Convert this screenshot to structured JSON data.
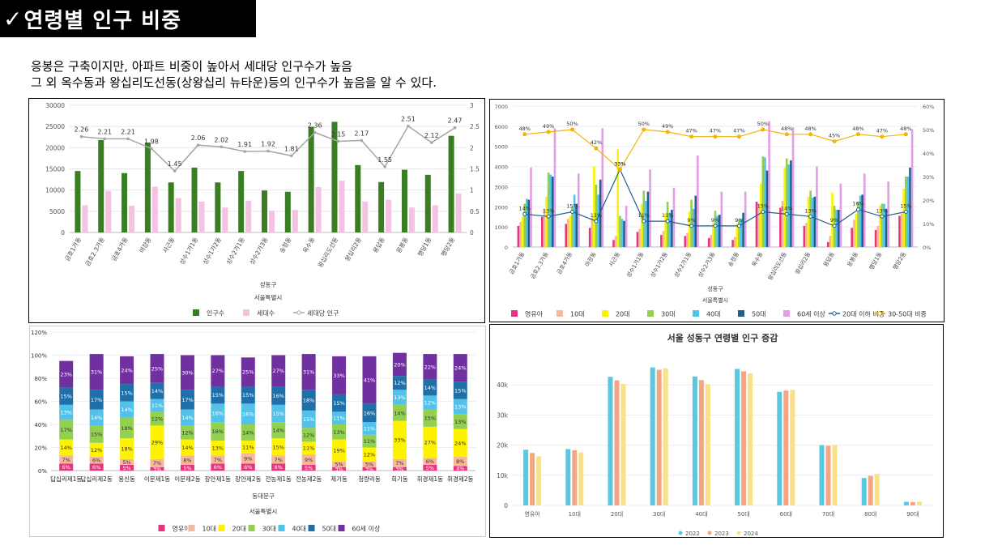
{
  "header": {
    "check_icon": "✓",
    "title": "연령별 인구 비중"
  },
  "description": {
    "line1": "응봉은 구축이지만, 아파트 비중이 높아서 세대당 인구수가 높음",
    "line2": "그 외 옥수동과 왕십리도선동(상왕십리 뉴타운)등의 인구수가 높음을 알 수 있다."
  },
  "chart_data": [
    {
      "id": "population",
      "type": "bar",
      "categories": [
        "금호1가동",
        "금호2.3가동",
        "금호4가동",
        "마장동",
        "사근동",
        "성수1가1동",
        "성수1가2동",
        "성수2가1동",
        "성수2가3동",
        "송정동",
        "옥수동",
        "왕십리도선동",
        "왕십리2동",
        "용답동",
        "응봉동",
        "행당1동",
        "행당2동"
      ],
      "series": [
        {
          "name": "인구수",
          "color": "#3a7d23",
          "axis": "left",
          "values": [
            14500,
            21800,
            14000,
            21200,
            11800,
            15300,
            11800,
            14500,
            9900,
            9600,
            24900,
            26100,
            15900,
            11900,
            14800,
            13600,
            22800
          ]
        },
        {
          "name": "세대수",
          "color": "#f4c2e3",
          "axis": "left",
          "values": [
            6400,
            9800,
            6300,
            10800,
            8100,
            7300,
            5900,
            7500,
            5100,
            5300,
            10700,
            12200,
            7300,
            7700,
            5900,
            6400,
            9200
          ]
        },
        {
          "name": "세대당 인구",
          "type": "line",
          "color": "#a6a6a6",
          "axis": "right",
          "values": [
            2.26,
            2.21,
            2.21,
            1.98,
            1.45,
            2.06,
            2.02,
            1.91,
            1.92,
            1.81,
            2.36,
            2.15,
            2.17,
            1.55,
            2.51,
            2.12,
            2.47
          ]
        }
      ],
      "y_left_ticks": [
        "0",
        "5000",
        "10000",
        "15000",
        "20000",
        "25000",
        "30000"
      ],
      "y_right_ticks": [
        "0",
        "0.5",
        "1",
        "1.5",
        "2",
        "2.5",
        "3"
      ],
      "ylim": [
        0,
        30000
      ],
      "y2lim": [
        0,
        3
      ],
      "xlabel": "성동구",
      "xlabel2": "서울특별시",
      "legend": [
        "인구수",
        "세대수",
        "세대당 인구"
      ]
    },
    {
      "id": "age-groups",
      "type": "bar",
      "categories": [
        "금호1가동",
        "금호2.3가동",
        "금호4가동",
        "마장동",
        "사근동",
        "성수1가1동",
        "성수1가2동",
        "성수2가1동",
        "성수2가3동",
        "송정동",
        "옥수동",
        "왕십리도선동",
        "왕십리2동",
        "용답동",
        "응봉동",
        "행당1동",
        "행당2동"
      ],
      "series": [
        {
          "name": "영유아",
          "color": "#e8347f",
          "values": [
            1050,
            1500,
            1150,
            950,
            350,
            750,
            600,
            550,
            450,
            350,
            2250,
            1950,
            1050,
            250,
            950,
            850,
            1550
          ]
        },
        {
          "name": "10대",
          "color": "#f7b79a",
          "values": [
            1250,
            1900,
            1400,
            1500,
            550,
            900,
            800,
            700,
            600,
            500,
            2150,
            2300,
            1200,
            550,
            1350,
            1050,
            1650
          ]
        },
        {
          "name": "20대",
          "color": "#fff200",
          "values": [
            1500,
            2500,
            1550,
            4000,
            4850,
            2150,
            1650,
            1750,
            1200,
            1150,
            3150,
            3950,
            2500,
            2700,
            1650,
            2050,
            2900
          ]
        },
        {
          "name": "30대",
          "color": "#92d050",
          "values": [
            2150,
            3700,
            2000,
            3100,
            1550,
            2800,
            2250,
            2350,
            1800,
            1350,
            4500,
            4400,
            2800,
            2050,
            2250,
            2150,
            3500
          ]
        },
        {
          "name": "40대",
          "color": "#52c2ea",
          "values": [
            2400,
            3600,
            2600,
            2600,
            1400,
            2300,
            1700,
            1900,
            1550,
            1400,
            4450,
            4100,
            2450,
            1850,
            2550,
            2150,
            3500
          ]
        },
        {
          "name": "50대",
          "color": "#1f5f8b",
          "values": [
            2350,
            3500,
            2150,
            3350,
            1300,
            2750,
            1850,
            2550,
            1600,
            1700,
            3800,
            4300,
            2500,
            1850,
            2600,
            1900,
            3950
          ]
        },
        {
          "name": "60세 이상",
          "color": "#e29ee6",
          "values": [
            3950,
            5900,
            3650,
            5900,
            2050,
            3850,
            2950,
            4550,
            2750,
            2750,
            6250,
            5950,
            4000,
            3150,
            3650,
            3250,
            5850
          ]
        },
        {
          "name": "20대 이하 비중",
          "type": "line",
          "color": "#1f5f8b",
          "values": [
            14,
            13,
            15,
            11,
            33,
            11,
            11,
            9,
            9,
            9,
            15,
            14,
            13,
            9,
            16,
            13,
            15
          ]
        },
        {
          "name": "30-50대 비중",
          "type": "line",
          "color": "#f4b400",
          "values": [
            48,
            49,
            50,
            42,
            33,
            50,
            49,
            47,
            47,
            47,
            50,
            48,
            48,
            45,
            48,
            47,
            48
          ]
        }
      ],
      "y_left_ticks": [
        "0",
        "1000",
        "2000",
        "3000",
        "4000",
        "5000",
        "6000",
        "7000"
      ],
      "y_right_ticks": [
        "0%",
        "10%",
        "20%",
        "30%",
        "40%",
        "50%",
        "60%"
      ],
      "ylim": [
        0,
        7000
      ],
      "y2lim": [
        0,
        60
      ],
      "xlabel": "성동구",
      "xlabel2": "서울특별시",
      "legend": [
        "영유아",
        "10대",
        "20대",
        "30대",
        "40대",
        "50대",
        "60세 이상",
        "20대 이하 비중",
        "30-50대 비중"
      ]
    },
    {
      "id": "dongdaemun-share",
      "type": "bar",
      "stacked": true,
      "categories": [
        "답십리제1동",
        "답십리제2동",
        "용신동",
        "이문제1동",
        "이문제2동",
        "장안제1동",
        "장안제2동",
        "전농제1동",
        "전농제2동",
        "제기동",
        "청량리동",
        "회기동",
        "휘경제1동",
        "휘경제2동"
      ],
      "series": [
        {
          "name": "영유아",
          "color": "#e8347f",
          "values": [
            6,
            6,
            5,
            3,
            5,
            6,
            6,
            6,
            5,
            3,
            3,
            3,
            5,
            4
          ]
        },
        {
          "name": "10대",
          "color": "#f7b79a",
          "values": [
            7,
            6,
            5,
            7,
            8,
            7,
            9,
            7,
            9,
            5,
            5,
            7,
            6,
            8
          ]
        },
        {
          "name": "20대",
          "color": "#fff200",
          "values": [
            14,
            12,
            18,
            29,
            14,
            13,
            11,
            15,
            11,
            19,
            12,
            33,
            27,
            24
          ]
        },
        {
          "name": "30대",
          "color": "#92d050",
          "values": [
            17,
            15,
            18,
            12,
            12,
            16,
            14,
            14,
            12,
            13,
            11,
            14,
            15,
            13
          ]
        },
        {
          "name": "40대",
          "color": "#52c2ea",
          "values": [
            13,
            14,
            14,
            11,
            14,
            16,
            18,
            15,
            15,
            11,
            11,
            13,
            12,
            13
          ]
        },
        {
          "name": "50대",
          "color": "#1f6fa8",
          "values": [
            15,
            17,
            15,
            14,
            17,
            15,
            15,
            16,
            18,
            15,
            16,
            12,
            14,
            15
          ]
        },
        {
          "name": "60세 이상",
          "color": "#7030a0",
          "values": [
            23,
            31,
            24,
            25,
            30,
            27,
            25,
            27,
            31,
            33,
            41,
            20,
            22,
            24
          ]
        }
      ],
      "y_ticks": [
        "0%",
        "20%",
        "40%",
        "60%",
        "80%",
        "100%",
        "120%"
      ],
      "ylim": [
        0,
        120
      ],
      "xlabel": "동대문구",
      "xlabel2": "서울특별시",
      "legend": [
        "영유아",
        "10대",
        "20대",
        "30대",
        "40대",
        "50대",
        "60세 이상"
      ]
    },
    {
      "id": "age-trend",
      "type": "bar",
      "title": "서울 성동구 연령별 인구 증감",
      "categories": [
        "영유아",
        "10대",
        "20대",
        "30대",
        "40대",
        "50대",
        "60대",
        "70대",
        "80대",
        "90대"
      ],
      "series": [
        {
          "name": "2022",
          "color": "#5bc8df",
          "values": [
            18500,
            18700,
            42700,
            45800,
            42800,
            45300,
            37700,
            20000,
            9100,
            1200
          ]
        },
        {
          "name": "2023",
          "color": "#f4a582",
          "values": [
            17400,
            18300,
            41500,
            45000,
            41600,
            44500,
            38100,
            19800,
            9800,
            1100
          ]
        },
        {
          "name": "2024",
          "color": "#fbe08a",
          "values": [
            16300,
            17600,
            40300,
            45500,
            40200,
            43800,
            38300,
            20100,
            10500,
            1200
          ]
        }
      ],
      "y_ticks": [
        "0",
        "10k",
        "20k",
        "30k",
        "40k"
      ],
      "ylim": [
        0,
        50000
      ],
      "legend": [
        "2022",
        "2023",
        "2024"
      ]
    }
  ]
}
